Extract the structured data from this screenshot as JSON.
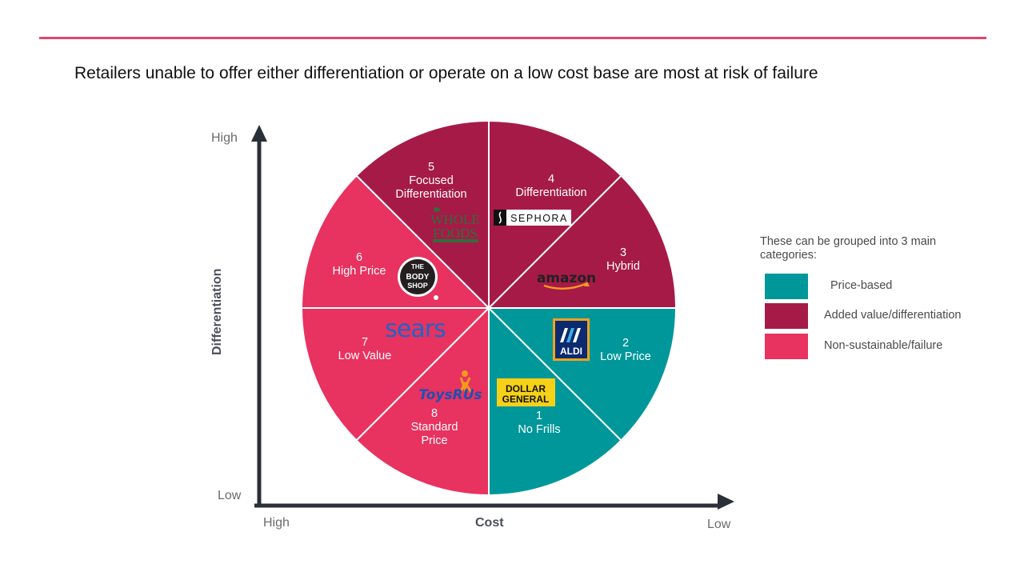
{
  "headline": "Retailers unable to offer either differentiation or operate on a low cost base are most at risk of failure",
  "axes": {
    "y_title": "Differentiation",
    "x_title": "Cost",
    "y_high": "High",
    "y_low": "Low",
    "x_high": "High",
    "x_low": "Low"
  },
  "segments": [
    {
      "number": "1",
      "label_lines": [
        "No Frills"
      ],
      "category": "price"
    },
    {
      "number": "2",
      "label_lines": [
        "Low Price"
      ],
      "category": "price"
    },
    {
      "number": "3",
      "label_lines": [
        "Hybrid"
      ],
      "category": "added"
    },
    {
      "number": "4",
      "label_lines": [
        "Differentiation"
      ],
      "category": "added"
    },
    {
      "number": "5",
      "label_lines": [
        "Focused",
        "Differentiation"
      ],
      "category": "added"
    },
    {
      "number": "6",
      "label_lines": [
        "High Price"
      ],
      "category": "fail"
    },
    {
      "number": "7",
      "label_lines": [
        "Low Value"
      ],
      "category": "fail"
    },
    {
      "number": "8",
      "label_lines": [
        "Standard",
        "Price"
      ],
      "category": "fail"
    }
  ],
  "logos": {
    "whole_foods": [
      "WHOLE",
      "FOODS"
    ],
    "sephora": "SEPHORA",
    "amazon": "amazon",
    "body_shop": [
      "THE",
      "BODY",
      "SHOP"
    ],
    "sears": "sears",
    "aldi": "ALDI",
    "dollar_general": [
      "DOLLAR",
      "GENERAL"
    ],
    "toys_r_us": "ToysRUs"
  },
  "legend": {
    "heading": "These can be grouped into 3 main categories:",
    "items": [
      {
        "label": "Price-based",
        "color": "#00979a"
      },
      {
        "label": "Added value/differentiation",
        "color": "#a61a48"
      },
      {
        "label": "Non-sustainable/failure",
        "color": "#e8325f"
      }
    ]
  },
  "colors": {
    "price": "#00979a",
    "added": "#a61a48",
    "fail": "#e8325f",
    "accent_rule": "#e0476e",
    "axis": "#2b2f38"
  }
}
